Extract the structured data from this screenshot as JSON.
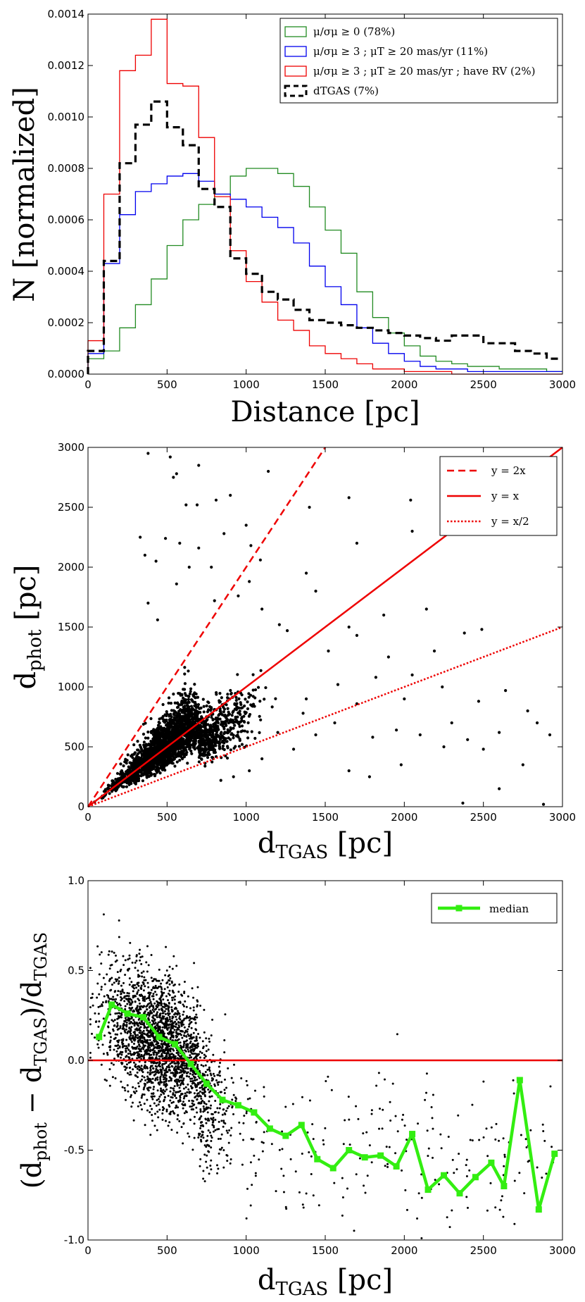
{
  "chart_data": [
    {
      "type": "line",
      "subtype": "step-histogram",
      "xlabel": "Distance [pc]",
      "ylabel": "N [normalized]",
      "xlim": [
        0,
        3000
      ],
      "ylim": [
        0,
        0.0014
      ],
      "xticks": [
        "0",
        "500",
        "1000",
        "1500",
        "2000",
        "2500",
        "3000"
      ],
      "yticks": [
        "0.0000",
        "0.0002",
        "0.0004",
        "0.0006",
        "0.0008",
        "0.0010",
        "0.0012",
        "0.0014"
      ],
      "legend_position": "top-right",
      "bin_edges": [
        0,
        100,
        200,
        300,
        400,
        500,
        600,
        700,
        800,
        900,
        1000,
        1100,
        1200,
        1300,
        1400,
        1500,
        1600,
        1700,
        1800,
        1900,
        2000,
        2100,
        2200,
        2300,
        2400,
        2500,
        2600,
        2700,
        2800,
        2900,
        3000
      ],
      "series": [
        {
          "name": "μ/σμ ≥ 0 (78%)",
          "color": "#228B22",
          "style": "solid",
          "values": [
            6e-05,
            9e-05,
            0.00018,
            0.00027,
            0.00037,
            0.0005,
            0.0006,
            0.00066,
            0.0007,
            0.00077,
            0.0008,
            0.0008,
            0.00078,
            0.00073,
            0.00065,
            0.00056,
            0.00047,
            0.00032,
            0.00022,
            0.00016,
            0.00011,
            7e-05,
            5e-05,
            4e-05,
            3e-05,
            3e-05,
            2e-05,
            2e-05,
            2e-05,
            1e-05
          ]
        },
        {
          "name": "μ/σμ ≥ 3 ; μT ≥ 20 mas/yr (11%)",
          "color": "#0000ee",
          "style": "solid",
          "values": [
            8e-05,
            0.00043,
            0.00062,
            0.00071,
            0.00074,
            0.00077,
            0.00078,
            0.00075,
            0.0007,
            0.00068,
            0.00065,
            0.00061,
            0.00057,
            0.00051,
            0.00042,
            0.00034,
            0.00027,
            0.00018,
            0.00012,
            8e-05,
            5e-05,
            3e-05,
            2e-05,
            2e-05,
            1e-05,
            1e-05,
            1e-05,
            1e-05,
            1e-05,
            1e-05
          ]
        },
        {
          "name": "μ/σμ ≥ 3 ; μT ≥ 20 mas/yr ; have RV (2%)",
          "color": "#ee0000",
          "style": "solid",
          "values": [
            0.00013,
            0.0007,
            0.00118,
            0.00124,
            0.00138,
            0.00113,
            0.00112,
            0.00092,
            0.00069,
            0.00048,
            0.00036,
            0.00028,
            0.00021,
            0.00017,
            0.00011,
            8e-05,
            6e-05,
            4e-05,
            2e-05,
            2e-05,
            1e-05,
            1e-05,
            1e-05,
            0.0,
            0.0,
            0.0,
            0.0,
            0.0,
            0.0,
            0.0
          ]
        },
        {
          "name": "dTGAS (7%)",
          "color": "#000000",
          "style": "dashed",
          "values": [
            9e-05,
            0.00044,
            0.00082,
            0.00097,
            0.00106,
            0.00096,
            0.00089,
            0.00072,
            0.00065,
            0.00045,
            0.00039,
            0.00032,
            0.00029,
            0.00025,
            0.00021,
            0.0002,
            0.00019,
            0.00018,
            0.00017,
            0.00016,
            0.00015,
            0.00014,
            0.00013,
            0.00015,
            0.00015,
            0.00012,
            0.00012,
            9e-05,
            8e-05,
            6e-05
          ]
        }
      ]
    },
    {
      "type": "scatter",
      "xlabel": "dTGAS [pc]",
      "ylabel": "dphot [pc]",
      "xlim": [
        0,
        3000
      ],
      "ylim": [
        0,
        3000
      ],
      "xticks": [
        "0",
        "500",
        "1000",
        "1500",
        "2000",
        "2500",
        "3000"
      ],
      "yticks": [
        "0",
        "500",
        "1000",
        "1500",
        "2000",
        "2500",
        "3000"
      ],
      "legend_position": "top-right",
      "lines": [
        {
          "name": "y = 2x",
          "slope": 2,
          "color": "#ee0000",
          "style": "dashed"
        },
        {
          "name": "y = x",
          "slope": 1,
          "color": "#ee0000",
          "style": "solid"
        },
        {
          "name": "y = x/2",
          "slope": 0.5,
          "color": "#ee0000",
          "style": "dotted"
        }
      ],
      "points": [
        [
          380,
          2950
        ],
        [
          520,
          2920
        ],
        [
          540,
          2750
        ],
        [
          560,
          2780
        ],
        [
          700,
          2850
        ],
        [
          900,
          2600
        ],
        [
          1140,
          2800
        ],
        [
          1650,
          2580
        ],
        [
          1400,
          2500
        ],
        [
          810,
          2560
        ],
        [
          620,
          2520
        ],
        [
          690,
          2520
        ],
        [
          330,
          2250
        ],
        [
          360,
          2100
        ],
        [
          490,
          2240
        ],
        [
          640,
          2000
        ],
        [
          700,
          2160
        ],
        [
          430,
          2050
        ],
        [
          580,
          2200
        ],
        [
          860,
          2280
        ],
        [
          780,
          2000
        ],
        [
          1000,
          2350
        ],
        [
          1030,
          2180
        ],
        [
          1090,
          2060
        ],
        [
          2040,
          2560
        ],
        [
          2050,
          2300
        ],
        [
          2560,
          2340
        ],
        [
          2420,
          2340
        ],
        [
          1700,
          2200
        ],
        [
          1380,
          1950
        ],
        [
          1440,
          1800
        ],
        [
          1020,
          1880
        ],
        [
          950,
          1760
        ],
        [
          800,
          1720
        ],
        [
          560,
          1860
        ],
        [
          380,
          1700
        ],
        [
          440,
          1560
        ],
        [
          1650,
          1500
        ],
        [
          1700,
          1430
        ],
        [
          1520,
          1300
        ],
        [
          1870,
          1600
        ],
        [
          2140,
          1650
        ],
        [
          2380,
          1450
        ],
        [
          2490,
          1480
        ],
        [
          2190,
          1300
        ],
        [
          1900,
          1250
        ],
        [
          2050,
          1100
        ],
        [
          1100,
          1650
        ],
        [
          1210,
          1520
        ],
        [
          1260,
          1470
        ],
        [
          1820,
          1080
        ],
        [
          1580,
          1020
        ],
        [
          2240,
          1000
        ],
        [
          2640,
          970
        ],
        [
          2000,
          900
        ],
        [
          1700,
          860
        ],
        [
          1380,
          900
        ],
        [
          2470,
          880
        ],
        [
          2780,
          800
        ],
        [
          2840,
          700
        ],
        [
          2920,
          600
        ],
        [
          2600,
          620
        ],
        [
          2400,
          560
        ],
        [
          2300,
          700
        ],
        [
          1950,
          640
        ],
        [
          1800,
          580
        ],
        [
          2100,
          600
        ],
        [
          2250,
          500
        ],
        [
          2500,
          480
        ],
        [
          2750,
          350
        ],
        [
          2880,
          20
        ],
        [
          2370,
          30
        ],
        [
          2600,
          150
        ],
        [
          1650,
          300
        ],
        [
          1780,
          250
        ],
        [
          1980,
          350
        ],
        [
          1300,
          480
        ],
        [
          1440,
          600
        ],
        [
          1560,
          700
        ],
        [
          1360,
          780
        ],
        [
          1200,
          620
        ],
        [
          1100,
          400
        ],
        [
          1020,
          300
        ],
        [
          920,
          250
        ],
        [
          840,
          220
        ]
      ]
    },
    {
      "type": "scatter",
      "xlabel": "dTGAS [pc]",
      "ylabel": "(dphot − dTGAS)/dTGAS",
      "xlim": [
        0,
        3000
      ],
      "ylim": [
        -1.0,
        1.0
      ],
      "xticks": [
        "0",
        "500",
        "1000",
        "1500",
        "2000",
        "2500",
        "3000"
      ],
      "yticks": [
        "-1.0",
        "-0.5",
        "0.0",
        "0.5",
        "1.0"
      ],
      "reference_line": 0.0,
      "legend_position": "top-right",
      "median": {
        "name": "median",
        "color": "#33ee11",
        "x": [
          70,
          150,
          250,
          350,
          450,
          550,
          650,
          750,
          850,
          950,
          1050,
          1150,
          1250,
          1350,
          1450,
          1550,
          1650,
          1750,
          1850,
          1950,
          2050,
          2150,
          2250,
          2350,
          2450,
          2550,
          2630,
          2730,
          2850,
          2950
        ],
        "y": [
          0.13,
          0.31,
          0.26,
          0.24,
          0.13,
          0.09,
          -0.02,
          -0.13,
          -0.22,
          -0.25,
          -0.29,
          -0.38,
          -0.42,
          -0.36,
          -0.55,
          -0.6,
          -0.5,
          -0.54,
          -0.53,
          -0.59,
          -0.41,
          -0.72,
          -0.64,
          -0.74,
          -0.65,
          -0.57,
          -0.7,
          -0.11,
          -0.83,
          -0.52
        ]
      }
    }
  ]
}
